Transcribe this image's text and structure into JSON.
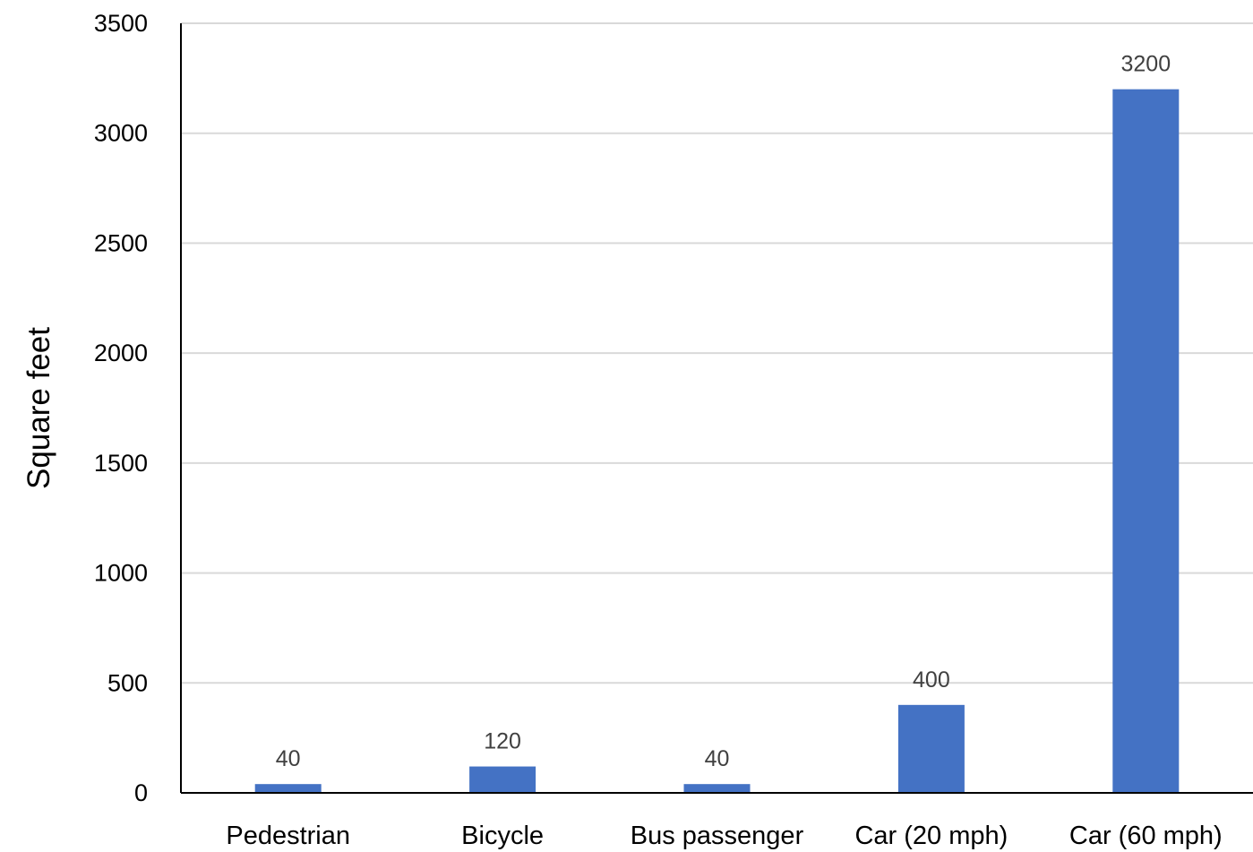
{
  "chart_data": {
    "type": "bar",
    "title": "",
    "xlabel": "",
    "ylabel": "Square feet",
    "categories": [
      "Pedestrian",
      "Bicycle",
      "Bus passenger",
      "Car (20 mph)",
      "Car (60 mph)"
    ],
    "values": [
      40,
      120,
      40,
      400,
      3200
    ],
    "data_labels": [
      "40",
      "120",
      "40",
      "400",
      "3200"
    ],
    "ylim": [
      0,
      3500
    ],
    "yticks": [
      0,
      500,
      1000,
      1500,
      2000,
      2500,
      3000,
      3500
    ],
    "ytick_labels": [
      "0",
      "500",
      "1000",
      "1500",
      "2000",
      "2500",
      "3000",
      "3500"
    ],
    "grid": true,
    "legend": "none",
    "colors": {
      "bar": "#4472C4",
      "grid": "#D9D9D9",
      "axis": "#000000",
      "data_label": "#404040"
    }
  }
}
